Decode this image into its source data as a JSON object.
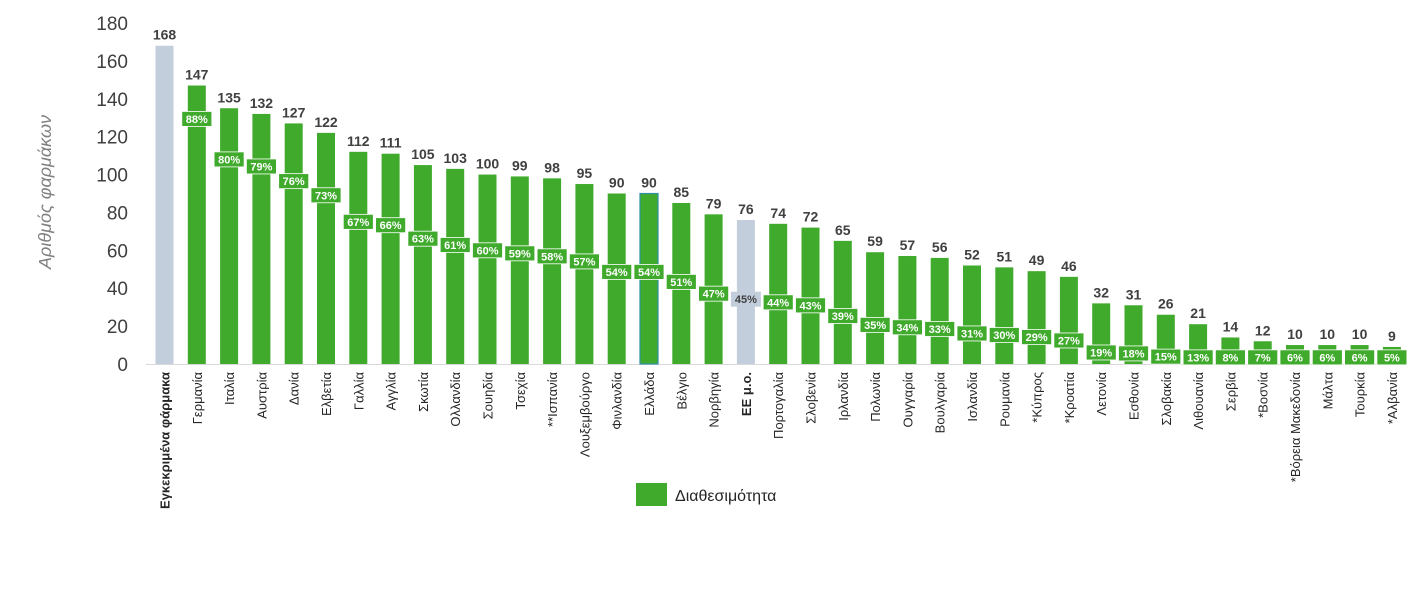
{
  "chart_data": {
    "type": "bar",
    "ylabel": "Αριθμός φαρμάκων",
    "xlabel": "",
    "ylim": [
      0,
      180
    ],
    "yticks": [
      0,
      20,
      40,
      60,
      80,
      100,
      120,
      140,
      160,
      180
    ],
    "grid": false,
    "legend": {
      "placement": "bottom",
      "entries": [
        {
          "label": "Διαθεσιμότητα",
          "color": "#3faa2b"
        }
      ]
    },
    "colors": {
      "bar": "#3faa2b",
      "reference": "#c3cedc",
      "axis": "#d9d9d9"
    },
    "categories": [
      "Εγκεκριμένα φάρμακα",
      "Γερμανία",
      "Ιταλία",
      "Αυστρία",
      "Δανία",
      "Ελβετία",
      "Γαλλία",
      "Αγγλία",
      "Σκωτία",
      "Ολλανδία",
      "Σουηδία",
      "Τσεχία",
      "**Ισπανία",
      "Λουξεμβούργο",
      "Φινλανδία",
      "Ελλάδα",
      "Βέλγιο",
      "Νορβηγία",
      "ΕΕ μ.ο.",
      "Πορτογαλία",
      "Σλοβενία",
      "Ιρλανδία",
      "Πολωνία",
      "Ουγγαρία",
      "Βουλγαρία",
      "Ισλανδία",
      "Ρουμανία",
      "*Κύπρος",
      "*Κροατία",
      "Λετονία",
      "Εσθονία",
      "Σλοβακία",
      "Λιθουανία",
      "Σερβία",
      "*Βοσνία",
      "*Βόρεια Μακεδονία",
      "Μάλτα",
      "Τουρκία",
      "*Αλβανία"
    ],
    "values": [
      168,
      147,
      135,
      132,
      127,
      122,
      112,
      111,
      105,
      103,
      100,
      99,
      98,
      95,
      90,
      90,
      85,
      79,
      76,
      74,
      72,
      65,
      59,
      57,
      56,
      52,
      51,
      49,
      46,
      32,
      31,
      26,
      21,
      14,
      12,
      10,
      10,
      10,
      9
    ],
    "value_labels": [
      "168",
      "147",
      "135",
      "132",
      "127",
      "122",
      "112",
      "111",
      "105",
      "103",
      "100",
      "99",
      "98",
      "95",
      "90",
      "90",
      "85",
      "79",
      "76",
      "74",
      "72",
      "65",
      "59",
      "57",
      "56",
      "52",
      "51",
      "49",
      "46",
      "32",
      "31",
      "26",
      "21",
      "14",
      "12",
      "10",
      "10",
      "10",
      "9"
    ],
    "availability_labels": [
      "",
      "88%",
      "80%",
      "79%",
      "76%",
      "73%",
      "67%",
      "66%",
      "63%",
      "61%",
      "60%",
      "59%",
      "58%",
      "57%",
      "54%",
      "54%",
      "51%",
      "47%",
      "45%",
      "44%",
      "43%",
      "39%",
      "35%",
      "34%",
      "33%",
      "31%",
      "30%",
      "29%",
      "27%",
      "19%",
      "18%",
      "15%",
      "13%",
      "8%",
      "7%",
      "6%",
      "6%",
      "6%",
      "5%"
    ],
    "bar_kinds": [
      "reference",
      "data",
      "data",
      "data",
      "data",
      "data",
      "data",
      "data",
      "data",
      "data",
      "data",
      "data",
      "data",
      "data",
      "data",
      "highlight",
      "data",
      "data",
      "reference",
      "data",
      "data",
      "data",
      "data",
      "data",
      "data",
      "data",
      "data",
      "data",
      "data",
      "data",
      "data",
      "data",
      "data",
      "data",
      "data",
      "data",
      "data",
      "data",
      "data"
    ],
    "bold_categories": [
      "Εγκεκριμένα φάρμακα",
      "ΕΕ μ.ο."
    ]
  }
}
